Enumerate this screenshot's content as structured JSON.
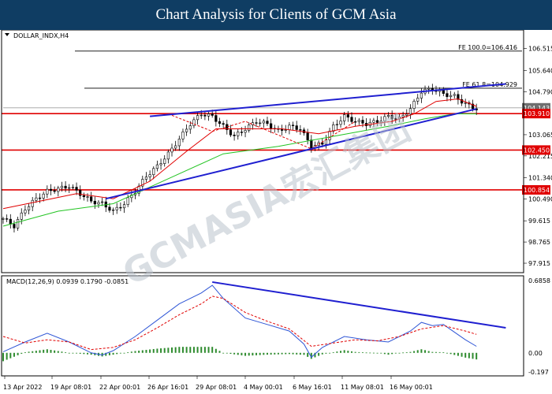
{
  "header": {
    "title": "Chart Analysis for Clients of GCM Asia"
  },
  "chart_data": [
    {
      "type": "candlestick",
      "symbol_label": "DOLLAR_INDX,H4",
      "ylim": [
        97.6,
        107.2
      ],
      "y_ticks": [
        "106.515",
        "105.640",
        "104.790",
        "103.065",
        "102.215",
        "101.340",
        "100.490",
        "99.615",
        "98.765",
        "97.915"
      ],
      "x_ticks": [
        "13 Apr 2022",
        "19 Apr 08:01",
        "22 Apr 00:01",
        "26 Apr 16:01",
        "29 Apr 08:01",
        "4 May 00:01",
        "6 May 16:01",
        "11 May 08:01",
        "16 May 00:01"
      ],
      "price_boxes": [
        {
          "label": "104.143",
          "color": "#6f6f6f"
        },
        {
          "label": "103.910",
          "color": "#e00000"
        },
        {
          "label": "102.450",
          "color": "#e00000"
        },
        {
          "label": "100.854",
          "color": "#e00000"
        }
      ],
      "fib_levels": [
        {
          "label": "FE 100.0=106.416",
          "value": 106.416
        },
        {
          "label": "FE 61.8=104.929",
          "value": 104.929
        }
      ],
      "horizontal_levels": [
        {
          "value": 103.91,
          "color": "#e00000"
        },
        {
          "value": 102.45,
          "color": "#e00000"
        },
        {
          "value": 100.854,
          "color": "#e00000"
        }
      ],
      "close_path": [
        [
          0,
          99.7
        ],
        [
          3,
          99.4
        ],
        [
          6,
          100.1
        ],
        [
          9,
          100.5
        ],
        [
          12,
          100.8
        ],
        [
          15,
          100.9
        ],
        [
          18,
          101.0
        ],
        [
          21,
          100.7
        ],
        [
          24,
          100.4
        ],
        [
          27,
          100.3
        ],
        [
          30,
          100.0
        ],
        [
          33,
          100.3
        ],
        [
          36,
          100.8
        ],
        [
          39,
          101.4
        ],
        [
          42,
          101.8
        ],
        [
          45,
          102.3
        ],
        [
          48,
          102.9
        ],
        [
          51,
          103.5
        ],
        [
          54,
          103.9
        ],
        [
          57,
          103.8
        ],
        [
          60,
          103.4
        ],
        [
          63,
          103.0
        ],
        [
          66,
          103.3
        ],
        [
          69,
          103.6
        ],
        [
          72,
          103.5
        ],
        [
          75,
          103.2
        ],
        [
          78,
          103.4
        ],
        [
          81,
          103.3
        ],
        [
          84,
          102.6
        ],
        [
          87,
          102.7
        ],
        [
          90,
          103.4
        ],
        [
          93,
          103.8
        ],
        [
          96,
          103.6
        ],
        [
          99,
          103.5
        ],
        [
          102,
          103.6
        ],
        [
          105,
          103.8
        ],
        [
          108,
          103.7
        ],
        [
          111,
          104.1
        ],
        [
          114,
          104.8
        ],
        [
          117,
          104.9
        ],
        [
          120,
          104.7
        ],
        [
          123,
          104.6
        ],
        [
          126,
          104.3
        ],
        [
          129,
          104.1
        ]
      ],
      "ma_red": [
        [
          0,
          100.1
        ],
        [
          10,
          100.4
        ],
        [
          20,
          100.7
        ],
        [
          30,
          100.5
        ],
        [
          40,
          101.2
        ],
        [
          50,
          102.4
        ],
        [
          58,
          103.3
        ],
        [
          66,
          103.3
        ],
        [
          76,
          103.3
        ],
        [
          86,
          103.1
        ],
        [
          96,
          103.4
        ],
        [
          106,
          103.6
        ],
        [
          112,
          103.9
        ],
        [
          118,
          104.4
        ],
        [
          124,
          104.5
        ],
        [
          129,
          104.2
        ]
      ],
      "ma_green": [
        [
          0,
          99.4
        ],
        [
          15,
          100.0
        ],
        [
          30,
          100.3
        ],
        [
          45,
          101.3
        ],
        [
          60,
          102.3
        ],
        [
          75,
          102.6
        ],
        [
          90,
          103.0
        ],
        [
          105,
          103.4
        ],
        [
          115,
          103.7
        ],
        [
          123,
          103.9
        ],
        [
          129,
          103.9
        ]
      ],
      "trendlines": [
        {
          "from": [
            28,
            100.5
          ],
          "to": [
            129,
            104.1
          ]
        },
        {
          "from": [
            40,
            103.8
          ],
          "to": [
            137,
            105.1
          ]
        }
      ],
      "watermark": "GCMASIA宏汇集团"
    },
    {
      "type": "macd",
      "label": "MACD(12,26,9) 0.0939 0.1790 -0.0851",
      "ylim": [
        -0.197,
        0.6858
      ],
      "y_ticks": [
        "0.6858",
        "0.00",
        "-0.197"
      ],
      "macd_line": [
        [
          0,
          0.01
        ],
        [
          6,
          0.1
        ],
        [
          12,
          0.18
        ],
        [
          18,
          0.1
        ],
        [
          24,
          0.0
        ],
        [
          27,
          -0.02
        ],
        [
          30,
          0.02
        ],
        [
          36,
          0.15
        ],
        [
          42,
          0.3
        ],
        [
          48,
          0.45
        ],
        [
          54,
          0.55
        ],
        [
          57,
          0.62
        ],
        [
          60,
          0.5
        ],
        [
          66,
          0.32
        ],
        [
          72,
          0.26
        ],
        [
          78,
          0.2
        ],
        [
          82,
          0.08
        ],
        [
          84,
          -0.04
        ],
        [
          87,
          0.05
        ],
        [
          93,
          0.15
        ],
        [
          99,
          0.12
        ],
        [
          105,
          0.1
        ],
        [
          111,
          0.2
        ],
        [
          114,
          0.28
        ],
        [
          117,
          0.25
        ],
        [
          120,
          0.26
        ],
        [
          126,
          0.12
        ],
        [
          129,
          0.06
        ]
      ],
      "signal_line": [
        [
          0,
          0.15
        ],
        [
          6,
          0.09
        ],
        [
          12,
          0.12
        ],
        [
          18,
          0.1
        ],
        [
          24,
          0.03
        ],
        [
          30,
          0.05
        ],
        [
          36,
          0.12
        ],
        [
          42,
          0.23
        ],
        [
          48,
          0.35
        ],
        [
          54,
          0.45
        ],
        [
          57,
          0.52
        ],
        [
          60,
          0.5
        ],
        [
          66,
          0.37
        ],
        [
          72,
          0.29
        ],
        [
          78,
          0.22
        ],
        [
          84,
          0.06
        ],
        [
          90,
          0.09
        ],
        [
          96,
          0.12
        ],
        [
          102,
          0.11
        ],
        [
          108,
          0.15
        ],
        [
          114,
          0.22
        ],
        [
          120,
          0.25
        ],
        [
          126,
          0.2
        ],
        [
          129,
          0.17
        ]
      ],
      "trendline": {
        "from": [
          57,
          0.65
        ],
        "to": [
          137,
          0.23
        ]
      }
    }
  ]
}
